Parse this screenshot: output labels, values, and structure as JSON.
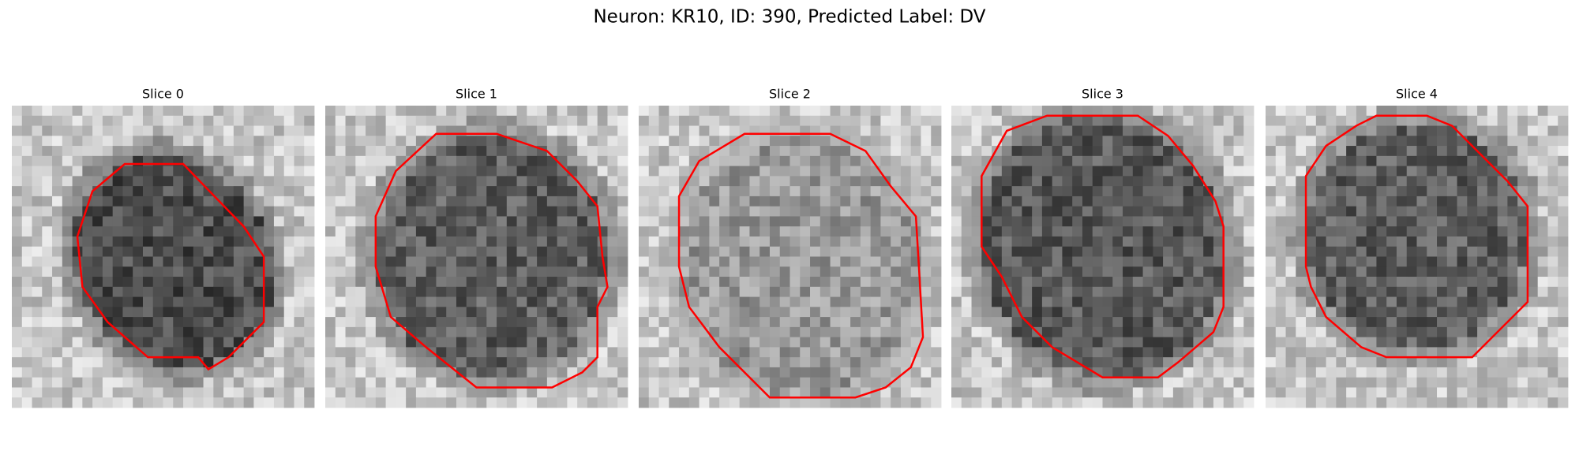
{
  "title": "Neuron: KR10, ID: 390, Predicted Label: DV",
  "panels": [
    {
      "title": "Slice 0"
    },
    {
      "title": "Slice 1"
    },
    {
      "title": "Slice 2"
    },
    {
      "title": "Slice 3"
    },
    {
      "title": "Slice 4"
    }
  ]
}
